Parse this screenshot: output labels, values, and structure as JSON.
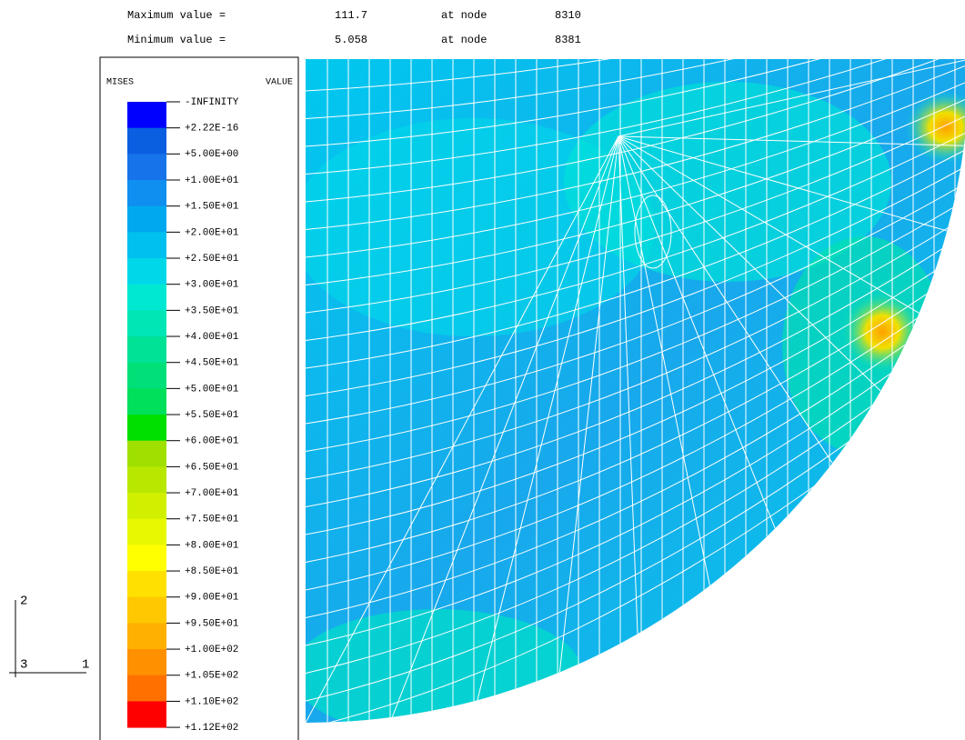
{
  "header": {
    "rows": [
      {
        "label": "Maximum value =",
        "value": "111.7",
        "at": "at node",
        "node": "8310"
      },
      {
        "label": "Minimum value =",
        "value": "5.058",
        "at": "at node",
        "node": "8381"
      }
    ]
  },
  "legend": {
    "title": "MISES",
    "subtitle": "VALUE",
    "labels": [
      "-INFINITY",
      "+2.22E-16",
      "+5.00E+00",
      "+1.00E+01",
      "+1.50E+01",
      "+2.00E+01",
      "+2.50E+01",
      "+3.00E+01",
      "+3.50E+01",
      "+4.00E+01",
      "+4.50E+01",
      "+5.00E+01",
      "+5.50E+01",
      "+6.00E+01",
      "+6.50E+01",
      "+7.00E+01",
      "+7.50E+01",
      "+8.00E+01",
      "+8.50E+01",
      "+9.00E+01",
      "+9.50E+01",
      "+1.00E+02",
      "+1.05E+02",
      "+1.10E+02",
      "+1.12E+02"
    ],
    "colors": [
      "#0000ff",
      "#0a5ee0",
      "#1673ea",
      "#0f8ff0",
      "#00a8f0",
      "#00c0f0",
      "#00d8ea",
      "#00e8d2",
      "#00e6b4",
      "#00e296",
      "#00e078",
      "#00e05a",
      "#00e000",
      "#a0e000",
      "#b8e800",
      "#d0f000",
      "#e8f800",
      "#ffff00",
      "#ffe000",
      "#ffc800",
      "#ffb000",
      "#ff9000",
      "#ff7000",
      "#ff0000"
    ]
  },
  "triad": {
    "axes": [
      "2",
      "3",
      "1"
    ]
  }
}
